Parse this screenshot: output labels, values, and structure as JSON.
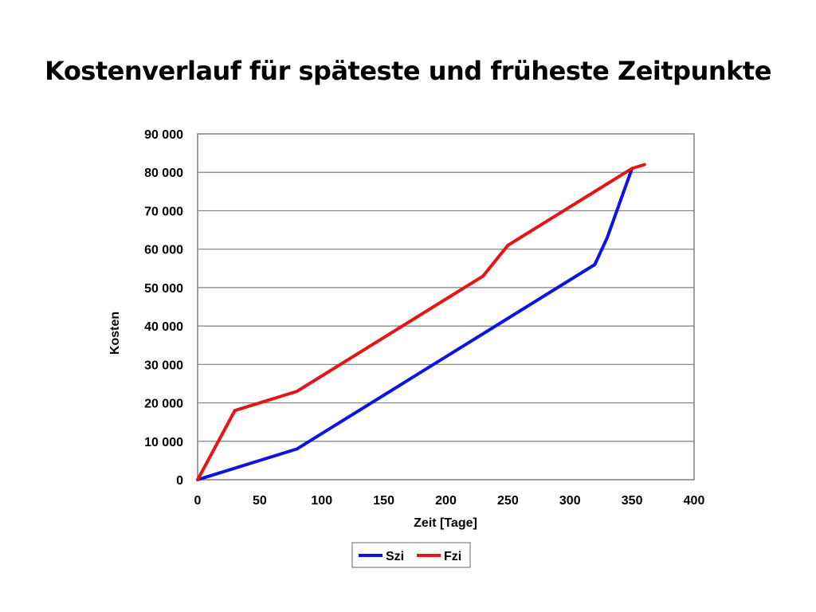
{
  "slide": {
    "title": "Kostenverlauf für späteste und früheste Zeitpunkte"
  },
  "chart_data": {
    "type": "line",
    "title": "",
    "xlabel": "Zeit [Tage]",
    "ylabel": "Kosten",
    "xlim": [
      0,
      400
    ],
    "ylim": [
      0,
      90000
    ],
    "x_ticks": [
      0,
      50,
      100,
      150,
      200,
      250,
      300,
      350,
      400
    ],
    "x_tick_labels": [
      "0",
      "50",
      "100",
      "150",
      "200",
      "250",
      "300",
      "350",
      "400"
    ],
    "y_ticks": [
      0,
      10000,
      20000,
      30000,
      40000,
      50000,
      60000,
      70000,
      80000,
      90000
    ],
    "y_tick_labels": [
      "0",
      "10 000",
      "20 000",
      "30 000",
      "40 000",
      "50 000",
      "60 000",
      "70 000",
      "80 000",
      "90 000"
    ],
    "grid": "horizontal",
    "legend_position": "bottom",
    "series": [
      {
        "name": "Szi",
        "color": "#0a14e6",
        "points": [
          [
            0,
            0
          ],
          [
            80,
            8000
          ],
          [
            320,
            56000
          ],
          [
            330,
            63000
          ],
          [
            350,
            81000
          ]
        ]
      },
      {
        "name": "Fzi",
        "color": "#e61414",
        "points": [
          [
            0,
            0
          ],
          [
            30,
            18000
          ],
          [
            80,
            23000
          ],
          [
            230,
            53000
          ],
          [
            250,
            61000
          ],
          [
            350,
            81000
          ],
          [
            360,
            82000
          ]
        ]
      }
    ]
  }
}
